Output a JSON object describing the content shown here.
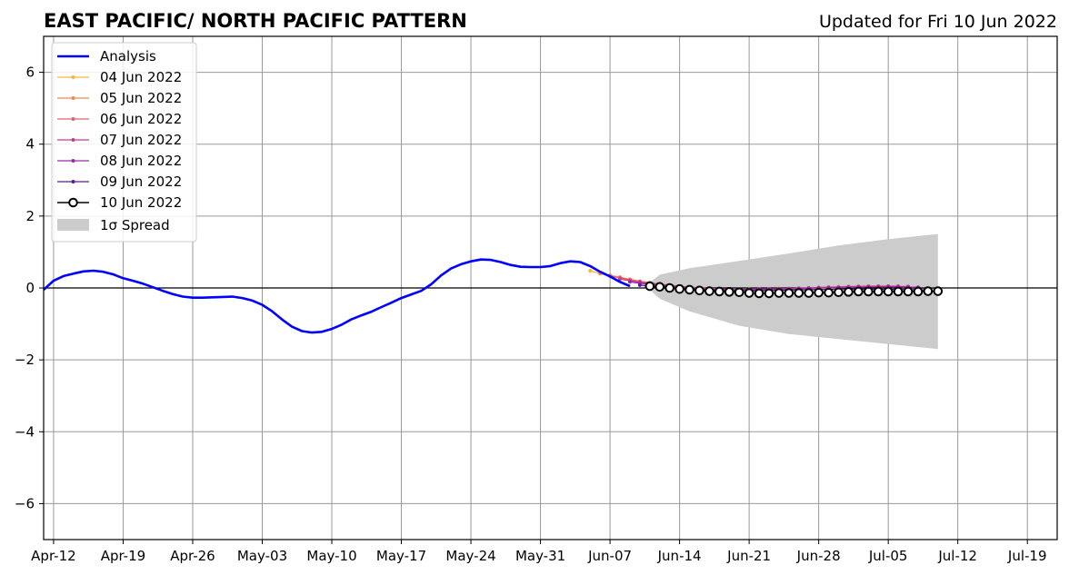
{
  "chart_data": {
    "type": "line",
    "title": "EAST PACIFIC/ NORTH PACIFIC PATTERN",
    "updated_text": "Updated for Fri 10 Jun 2022",
    "x_type": "date",
    "xlim": [
      "2022-04-11",
      "2022-07-22"
    ],
    "ylim": [
      -7,
      7
    ],
    "x_ticks": [
      {
        "date": "2022-04-12",
        "label": "Apr-12"
      },
      {
        "date": "2022-04-19",
        "label": "Apr-19"
      },
      {
        "date": "2022-04-26",
        "label": "Apr-26"
      },
      {
        "date": "2022-05-03",
        "label": "May-03"
      },
      {
        "date": "2022-05-10",
        "label": "May-10"
      },
      {
        "date": "2022-05-17",
        "label": "May-17"
      },
      {
        "date": "2022-05-24",
        "label": "May-24"
      },
      {
        "date": "2022-05-31",
        "label": "May-31"
      },
      {
        "date": "2022-06-07",
        "label": "Jun-07"
      },
      {
        "date": "2022-06-14",
        "label": "Jun-14"
      },
      {
        "date": "2022-06-21",
        "label": "Jun-21"
      },
      {
        "date": "2022-06-28",
        "label": "Jun-28"
      },
      {
        "date": "2022-07-05",
        "label": "Jul-05"
      },
      {
        "date": "2022-07-12",
        "label": "Jul-12"
      },
      {
        "date": "2022-07-19",
        "label": "Jul-19"
      }
    ],
    "y_ticks": [
      {
        "value": 6,
        "label": "6"
      },
      {
        "value": 4,
        "label": "4"
      },
      {
        "value": 2,
        "label": "2"
      },
      {
        "value": 0,
        "label": "0"
      },
      {
        "value": -2,
        "label": "−2"
      },
      {
        "value": -4,
        "label": "−4"
      },
      {
        "value": -6,
        "label": "−6"
      }
    ],
    "grid": true,
    "legend_position": "top-left",
    "analysis": {
      "name": "Analysis",
      "color": "#0000ff",
      "x": [
        "2022-04-11",
        "2022-04-12",
        "2022-04-13",
        "2022-04-14",
        "2022-04-15",
        "2022-04-16",
        "2022-04-17",
        "2022-04-18",
        "2022-04-19",
        "2022-04-20",
        "2022-04-21",
        "2022-04-22",
        "2022-04-23",
        "2022-04-24",
        "2022-04-25",
        "2022-04-26",
        "2022-04-27",
        "2022-04-28",
        "2022-04-29",
        "2022-04-30",
        "2022-05-01",
        "2022-05-02",
        "2022-05-03",
        "2022-05-04",
        "2022-05-05",
        "2022-05-06",
        "2022-05-07",
        "2022-05-08",
        "2022-05-09",
        "2022-05-10",
        "2022-05-11",
        "2022-05-12",
        "2022-05-13",
        "2022-05-14",
        "2022-05-15",
        "2022-05-16",
        "2022-05-17",
        "2022-05-18",
        "2022-05-19",
        "2022-05-20",
        "2022-05-21",
        "2022-05-22",
        "2022-05-23",
        "2022-05-24",
        "2022-05-25",
        "2022-05-26",
        "2022-05-27",
        "2022-05-28",
        "2022-05-29",
        "2022-05-30",
        "2022-05-31",
        "2022-06-01",
        "2022-06-02",
        "2022-06-03",
        "2022-06-04",
        "2022-06-05",
        "2022-06-06",
        "2022-06-07",
        "2022-06-08",
        "2022-06-09"
      ],
      "y": [
        -0.05,
        0.2,
        0.33,
        0.4,
        0.46,
        0.48,
        0.45,
        0.38,
        0.27,
        0.2,
        0.12,
        0.02,
        -0.08,
        -0.17,
        -0.24,
        -0.27,
        -0.27,
        -0.26,
        -0.25,
        -0.24,
        -0.28,
        -0.35,
        -0.47,
        -0.65,
        -0.88,
        -1.08,
        -1.2,
        -1.24,
        -1.22,
        -1.14,
        -1.02,
        -0.87,
        -0.76,
        -0.66,
        -0.53,
        -0.41,
        -0.28,
        -0.18,
        -0.08,
        0.1,
        0.35,
        0.54,
        0.66,
        0.74,
        0.79,
        0.78,
        0.72,
        0.64,
        0.59,
        0.58,
        0.58,
        0.61,
        0.69,
        0.74,
        0.72,
        0.61,
        0.45,
        0.32,
        0.17,
        0.05
      ]
    },
    "forecast_series": [
      {
        "name": "04 Jun 2022",
        "color": "#f7b63a",
        "x": [
          "2022-06-05",
          "2022-06-06",
          "2022-06-07",
          "2022-06-08",
          "2022-06-09",
          "2022-06-10",
          "2022-06-11",
          "2022-06-12",
          "2022-06-13",
          "2022-06-14",
          "2022-06-15",
          "2022-06-16",
          "2022-06-17",
          "2022-06-18",
          "2022-06-19",
          "2022-06-20",
          "2022-06-21",
          "2022-06-22",
          "2022-06-23",
          "2022-06-24",
          "2022-06-25",
          "2022-06-26",
          "2022-06-27",
          "2022-06-28",
          "2022-06-29",
          "2022-06-30",
          "2022-07-01",
          "2022-07-02",
          "2022-07-03",
          "2022-07-04"
        ],
        "y": [
          0.48,
          0.4,
          0.34,
          0.28,
          0.22,
          0.17,
          0.13,
          0.1,
          0.06,
          0.03,
          0.0,
          -0.02,
          -0.04,
          -0.05,
          -0.06,
          -0.07,
          -0.07,
          -0.06,
          -0.05,
          -0.05,
          -0.04,
          -0.03,
          -0.02,
          -0.01,
          0.0,
          0.01,
          0.02,
          0.03,
          0.04,
          0.05
        ]
      },
      {
        "name": "05 Jun 2022",
        "color": "#f08b46",
        "x": [
          "2022-06-06",
          "2022-06-07",
          "2022-06-08",
          "2022-06-09",
          "2022-06-10",
          "2022-06-11",
          "2022-06-12",
          "2022-06-13",
          "2022-06-14",
          "2022-06-15",
          "2022-06-16",
          "2022-06-17",
          "2022-06-18",
          "2022-06-19",
          "2022-06-20",
          "2022-06-21",
          "2022-06-22",
          "2022-06-23",
          "2022-06-24",
          "2022-06-25",
          "2022-06-26",
          "2022-06-27",
          "2022-06-28",
          "2022-06-29",
          "2022-06-30",
          "2022-07-01",
          "2022-07-02",
          "2022-07-03",
          "2022-07-04",
          "2022-07-05"
        ],
        "y": [
          0.4,
          0.35,
          0.3,
          0.24,
          0.19,
          0.15,
          0.11,
          0.08,
          0.05,
          0.02,
          0.0,
          -0.02,
          -0.03,
          -0.04,
          -0.05,
          -0.05,
          -0.05,
          -0.04,
          -0.04,
          -0.03,
          -0.02,
          -0.01,
          0.0,
          0.01,
          0.02,
          0.03,
          0.04,
          0.05,
          0.05,
          0.05
        ]
      },
      {
        "name": "06 Jun 2022",
        "color": "#e06175",
        "x": [
          "2022-06-07",
          "2022-06-08",
          "2022-06-09",
          "2022-06-10",
          "2022-06-11",
          "2022-06-12",
          "2022-06-13",
          "2022-06-14",
          "2022-06-15",
          "2022-06-16",
          "2022-06-17",
          "2022-06-18",
          "2022-06-19",
          "2022-06-20",
          "2022-06-21",
          "2022-06-22",
          "2022-06-23",
          "2022-06-24",
          "2022-06-25",
          "2022-06-26",
          "2022-06-27",
          "2022-06-28",
          "2022-06-29",
          "2022-06-30",
          "2022-07-01",
          "2022-07-02",
          "2022-07-03",
          "2022-07-04",
          "2022-07-05",
          "2022-07-06"
        ],
        "y": [
          0.33,
          0.28,
          0.23,
          0.18,
          0.14,
          0.1,
          0.07,
          0.04,
          0.02,
          0.0,
          -0.02,
          -0.03,
          -0.04,
          -0.04,
          -0.04,
          -0.04,
          -0.03,
          -0.03,
          -0.02,
          -0.01,
          0.0,
          0.01,
          0.02,
          0.03,
          0.04,
          0.04,
          0.05,
          0.05,
          0.05,
          0.05
        ]
      },
      {
        "name": "07 Jun 2022",
        "color": "#c53e8e",
        "x": [
          "2022-06-08",
          "2022-06-09",
          "2022-06-10",
          "2022-06-11",
          "2022-06-12",
          "2022-06-13",
          "2022-06-14",
          "2022-06-15",
          "2022-06-16",
          "2022-06-17",
          "2022-06-18",
          "2022-06-19",
          "2022-06-20",
          "2022-06-21",
          "2022-06-22",
          "2022-06-23",
          "2022-06-24",
          "2022-06-25",
          "2022-06-26",
          "2022-06-27",
          "2022-06-28",
          "2022-06-29",
          "2022-06-30",
          "2022-07-01",
          "2022-07-02",
          "2022-07-03",
          "2022-07-04",
          "2022-07-05",
          "2022-07-06",
          "2022-07-07"
        ],
        "y": [
          0.25,
          0.2,
          0.16,
          0.12,
          0.09,
          0.06,
          0.03,
          0.01,
          -0.01,
          -0.02,
          -0.03,
          -0.04,
          -0.04,
          -0.04,
          -0.03,
          -0.03,
          -0.02,
          -0.02,
          -0.01,
          0.0,
          0.01,
          0.02,
          0.02,
          0.03,
          0.04,
          0.04,
          0.04,
          0.05,
          0.04,
          0.04
        ]
      },
      {
        "name": "08 Jun 2022",
        "color": "#9b2aa8",
        "x": [
          "2022-06-09",
          "2022-06-10",
          "2022-06-11",
          "2022-06-12",
          "2022-06-13",
          "2022-06-14",
          "2022-06-15",
          "2022-06-16",
          "2022-06-17",
          "2022-06-18",
          "2022-06-19",
          "2022-06-20",
          "2022-06-21",
          "2022-06-22",
          "2022-06-23",
          "2022-06-24",
          "2022-06-25",
          "2022-06-26",
          "2022-06-27",
          "2022-06-28",
          "2022-06-29",
          "2022-06-30",
          "2022-07-01",
          "2022-07-02",
          "2022-07-03",
          "2022-07-04",
          "2022-07-05",
          "2022-07-06",
          "2022-07-07",
          "2022-07-08"
        ],
        "y": [
          0.17,
          0.13,
          0.1,
          0.07,
          0.04,
          0.02,
          0.0,
          -0.02,
          -0.03,
          -0.04,
          -0.05,
          -0.05,
          -0.05,
          -0.04,
          -0.04,
          -0.03,
          -0.03,
          -0.02,
          -0.01,
          0.0,
          0.01,
          0.01,
          0.02,
          0.02,
          0.03,
          0.03,
          0.03,
          0.03,
          0.02,
          0.02
        ]
      },
      {
        "name": "09 Jun 2022",
        "color": "#5b1a9c",
        "x": [
          "2022-06-10",
          "2022-06-11",
          "2022-06-12",
          "2022-06-13",
          "2022-06-14",
          "2022-06-15",
          "2022-06-16",
          "2022-06-17",
          "2022-06-18",
          "2022-06-19",
          "2022-06-20",
          "2022-06-21",
          "2022-06-22",
          "2022-06-23",
          "2022-06-24",
          "2022-06-25",
          "2022-06-26",
          "2022-06-27",
          "2022-06-28",
          "2022-06-29",
          "2022-06-30",
          "2022-07-01",
          "2022-07-02",
          "2022-07-03",
          "2022-07-04",
          "2022-07-05",
          "2022-07-06",
          "2022-07-07",
          "2022-07-08",
          "2022-07-09"
        ],
        "y": [
          0.08,
          0.05,
          0.03,
          0.01,
          -0.01,
          -0.03,
          -0.05,
          -0.06,
          -0.07,
          -0.08,
          -0.08,
          -0.08,
          -0.07,
          -0.07,
          -0.06,
          -0.06,
          -0.05,
          -0.05,
          -0.04,
          -0.04,
          -0.03,
          -0.03,
          -0.03,
          -0.03,
          -0.03,
          -0.04,
          -0.04,
          -0.05,
          -0.05,
          -0.06
        ]
      }
    ],
    "current_forecast": {
      "name": "10 Jun 2022",
      "color": "#000000",
      "x": [
        "2022-06-11",
        "2022-06-12",
        "2022-06-13",
        "2022-06-14",
        "2022-06-15",
        "2022-06-16",
        "2022-06-17",
        "2022-06-18",
        "2022-06-19",
        "2022-06-20",
        "2022-06-21",
        "2022-06-22",
        "2022-06-23",
        "2022-06-24",
        "2022-06-25",
        "2022-06-26",
        "2022-06-27",
        "2022-06-28",
        "2022-06-29",
        "2022-06-30",
        "2022-07-01",
        "2022-07-02",
        "2022-07-03",
        "2022-07-04",
        "2022-07-05",
        "2022-07-06",
        "2022-07-07",
        "2022-07-08",
        "2022-07-09",
        "2022-07-10"
      ],
      "y": [
        0.05,
        0.03,
        0.0,
        -0.03,
        -0.05,
        -0.07,
        -0.09,
        -0.1,
        -0.11,
        -0.12,
        -0.14,
        -0.15,
        -0.15,
        -0.14,
        -0.14,
        -0.14,
        -0.14,
        -0.13,
        -0.13,
        -0.12,
        -0.11,
        -0.1,
        -0.1,
        -0.1,
        -0.1,
        -0.1,
        -0.1,
        -0.1,
        -0.09,
        -0.09
      ]
    },
    "spread": {
      "name": "1σ Spread",
      "color": "#cccccc",
      "x": [
        "2022-06-11",
        "2022-06-12",
        "2022-06-15",
        "2022-06-20",
        "2022-06-25",
        "2022-06-30",
        "2022-07-05",
        "2022-07-10"
      ],
      "upper": [
        0.15,
        0.37,
        0.55,
        0.75,
        0.96,
        1.18,
        1.36,
        1.5
      ],
      "lower": [
        -0.05,
        -0.3,
        -0.65,
        -1.05,
        -1.28,
        -1.42,
        -1.56,
        -1.7
      ]
    }
  }
}
